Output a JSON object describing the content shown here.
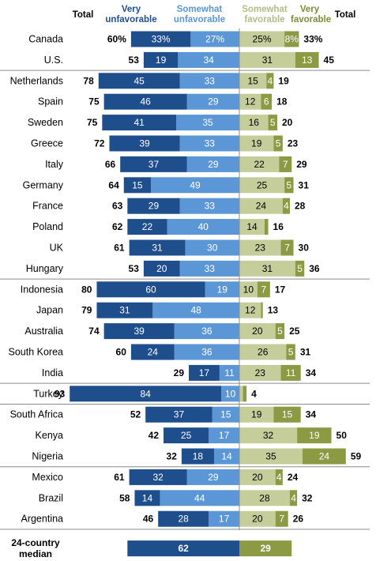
{
  "header": {
    "total_left": "Total",
    "very_unfavorable": [
      "Very",
      "unfavorable"
    ],
    "somewhat_unfavorable": [
      "Somewhat",
      "unfavorable"
    ],
    "somewhat_favorable": [
      "Somewhat",
      "favorable"
    ],
    "very_favorable": [
      "Very",
      "favorable"
    ],
    "total_right": "Total"
  },
  "colors": {
    "very_unfavorable": "#1f4e8c",
    "somewhat_unfavorable": "#5b97d6",
    "somewhat_favorable": "#c5cd9a",
    "very_favorable": "#8b9a43",
    "header_very_unfavorable": "#1f4e8c",
    "header_somewhat_unfavorable": "#5b97d6",
    "header_somewhat_favorable": "#b4bc86",
    "header_very_favorable": "#7e8c37",
    "text_dark": "#000000",
    "divider": "#8c8c8c"
  },
  "chart_data": {
    "type": "bar",
    "stacked": "diverging",
    "series_names": [
      "Very unfavorable",
      "Somewhat unfavorable",
      "Somewhat favorable",
      "Very favorable"
    ],
    "groups": [
      {
        "rows": [
          {
            "country": "Canada",
            "very_unfav": "33%",
            "somewhat_unfav": "27%",
            "unfav_total": "60%",
            "somewhat_fav": "25%",
            "very_fav": "8%",
            "fav_total": "33%"
          },
          {
            "country": "U.S.",
            "very_unfav": 19,
            "somewhat_unfav": 34,
            "unfav_total": 53,
            "somewhat_fav": 31,
            "very_fav": 13,
            "fav_total": 45
          }
        ]
      },
      {
        "rows": [
          {
            "country": "Netherlands",
            "very_unfav": 45,
            "somewhat_unfav": 33,
            "unfav_total": 78,
            "somewhat_fav": 15,
            "very_fav": 4,
            "fav_total": 19
          },
          {
            "country": "Spain",
            "very_unfav": 46,
            "somewhat_unfav": 29,
            "unfav_total": 75,
            "somewhat_fav": 12,
            "very_fav": 6,
            "fav_total": 18
          },
          {
            "country": "Sweden",
            "very_unfav": 41,
            "somewhat_unfav": 35,
            "unfav_total": 75,
            "somewhat_fav": 16,
            "very_fav": 5,
            "fav_total": 20
          },
          {
            "country": "Greece",
            "very_unfav": 39,
            "somewhat_unfav": 33,
            "unfav_total": 72,
            "somewhat_fav": 19,
            "very_fav": 5,
            "fav_total": 23
          },
          {
            "country": "Italy",
            "very_unfav": 37,
            "somewhat_unfav": 29,
            "unfav_total": 66,
            "somewhat_fav": 22,
            "very_fav": 7,
            "fav_total": 29
          },
          {
            "country": "Germany",
            "very_unfav": 15,
            "somewhat_unfav": 49,
            "unfav_total": 64,
            "somewhat_fav": 25,
            "very_fav": 5,
            "fav_total": 31
          },
          {
            "country": "France",
            "very_unfav": 29,
            "somewhat_unfav": 33,
            "unfav_total": 63,
            "somewhat_fav": 24,
            "very_fav": 4,
            "fav_total": 28
          },
          {
            "country": "Poland",
            "very_unfav": 22,
            "somewhat_unfav": 40,
            "unfav_total": 62,
            "somewhat_fav": 14,
            "very_fav": 2,
            "fav_total": 16
          },
          {
            "country": "UK",
            "very_unfav": 31,
            "somewhat_unfav": 30,
            "unfav_total": 61,
            "somewhat_fav": 23,
            "very_fav": 7,
            "fav_total": 30
          },
          {
            "country": "Hungary",
            "very_unfav": 20,
            "somewhat_unfav": 33,
            "unfav_total": 53,
            "somewhat_fav": 31,
            "very_fav": 5,
            "fav_total": 36
          }
        ]
      },
      {
        "rows": [
          {
            "country": "Indonesia",
            "very_unfav": 60,
            "somewhat_unfav": 19,
            "unfav_total": 80,
            "somewhat_fav": 10,
            "very_fav": 7,
            "fav_total": 17
          },
          {
            "country": "Japan",
            "very_unfav": 31,
            "somewhat_unfav": 48,
            "unfav_total": 79,
            "somewhat_fav": 12,
            "very_fav": 1,
            "fav_total": 13
          },
          {
            "country": "Australia",
            "very_unfav": 39,
            "somewhat_unfav": 36,
            "unfav_total": 74,
            "somewhat_fav": 20,
            "very_fav": 5,
            "fav_total": 25
          },
          {
            "country": "South Korea",
            "very_unfav": 24,
            "somewhat_unfav": 36,
            "unfav_total": 60,
            "somewhat_fav": 26,
            "very_fav": 5,
            "fav_total": 31
          },
          {
            "country": "India",
            "very_unfav": 17,
            "somewhat_unfav": 11,
            "unfav_total": 29,
            "somewhat_fav": 23,
            "very_fav": 11,
            "fav_total": 34
          }
        ]
      },
      {
        "rows": [
          {
            "country": "Turkey",
            "very_unfav": 84,
            "somewhat_unfav": 10,
            "unfav_total": 93,
            "somewhat_fav": 2,
            "very_fav": 2,
            "fav_total": 4
          }
        ]
      },
      {
        "rows": [
          {
            "country": "South Africa",
            "very_unfav": 37,
            "somewhat_unfav": 15,
            "unfav_total": 52,
            "somewhat_fav": 19,
            "very_fav": 15,
            "fav_total": 34
          },
          {
            "country": "Kenya",
            "very_unfav": 25,
            "somewhat_unfav": 17,
            "unfav_total": 42,
            "somewhat_fav": 32,
            "very_fav": 19,
            "fav_total": 50
          },
          {
            "country": "Nigeria",
            "very_unfav": 18,
            "somewhat_unfav": 14,
            "unfav_total": 32,
            "somewhat_fav": 35,
            "very_fav": 24,
            "fav_total": 59
          }
        ]
      },
      {
        "rows": [
          {
            "country": "Mexico",
            "very_unfav": 32,
            "somewhat_unfav": 29,
            "unfav_total": 61,
            "somewhat_fav": 20,
            "very_fav": 4,
            "fav_total": 24
          },
          {
            "country": "Brazil",
            "very_unfav": 14,
            "somewhat_unfav": 44,
            "unfav_total": 58,
            "somewhat_fav": 28,
            "very_fav": 4,
            "fav_total": 32
          },
          {
            "country": "Argentina",
            "very_unfav": 28,
            "somewhat_unfav": 17,
            "unfav_total": 46,
            "somewhat_fav": 20,
            "very_fav": 7,
            "fav_total": 26
          }
        ]
      }
    ],
    "median": {
      "label": [
        "24-country",
        "median"
      ],
      "unfav": 62,
      "fav": 29
    }
  }
}
